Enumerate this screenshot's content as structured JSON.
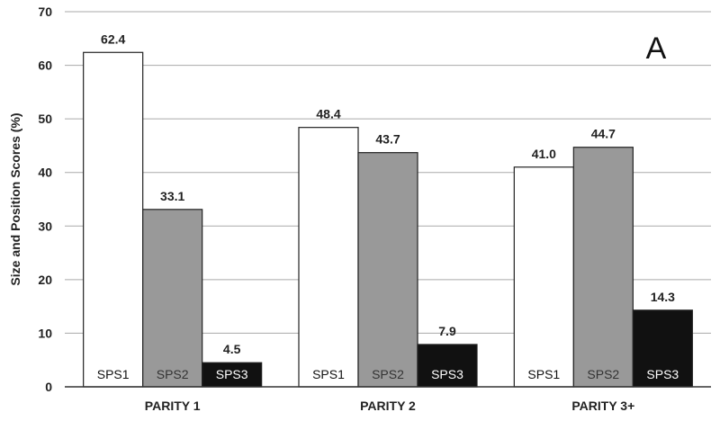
{
  "chart_data": {
    "type": "bar",
    "panel_label": "A",
    "ylabel": "Size and Position Scores (%)",
    "xlabel": "",
    "ylim": [
      0,
      70
    ],
    "yticks": [
      0,
      10,
      20,
      30,
      40,
      50,
      60,
      70
    ],
    "grid": true,
    "categories": [
      "PARITY 1",
      "PARITY 2",
      "PARITY 3+"
    ],
    "series": [
      {
        "name": "SPS1",
        "values": [
          62.4,
          48.4,
          41.0
        ],
        "value_labels": [
          "62.4",
          "48.4",
          "41.0"
        ],
        "fill": "#ffffff",
        "label_color": "#111111"
      },
      {
        "name": "SPS2",
        "values": [
          33.1,
          43.7,
          44.7
        ],
        "value_labels": [
          "33.1",
          "43.7",
          "44.7"
        ],
        "fill": "#999999",
        "label_color": "#333333"
      },
      {
        "name": "SPS3",
        "values": [
          4.5,
          7.9,
          14.3
        ],
        "value_labels": [
          "4.5",
          "7.9",
          "14.3"
        ],
        "fill": "#111111",
        "label_color": "#ffffff"
      }
    ]
  }
}
